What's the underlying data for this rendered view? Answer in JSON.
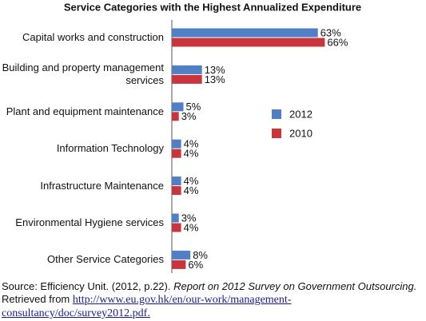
{
  "chart_data": {
    "type": "bar",
    "orientation": "horizontal",
    "title": "Service Categories with the Highest Annualized Expenditure",
    "categories": [
      "Capital works and construction",
      "Building and property management services",
      "Plant and equipment maintenance",
      "Information Technology",
      "Infrastructure Maintenance",
      "Environmental Hygiene services",
      "Other Service Categories"
    ],
    "series": [
      {
        "name": "2012",
        "color": "#4f7fc4",
        "values": [
          63,
          13,
          5,
          4,
          4,
          3,
          8
        ],
        "value_labels": [
          "63%",
          "13%",
          "5%",
          "4%",
          "4%",
          "3%",
          "8%"
        ]
      },
      {
        "name": "2010",
        "color": "#c9353d",
        "values": [
          66,
          13,
          3,
          4,
          4,
          4,
          6
        ],
        "value_labels": [
          "66%",
          "13%",
          "3%",
          "4%",
          "4%",
          "4%",
          "6%"
        ]
      }
    ],
    "xlim": [
      0,
      70
    ],
    "legend": "right"
  },
  "source": {
    "prefix": "Source: Efficiency Unit. (2012, p.22).",
    "report": "Report on 2012 Survey on Government Outsourcing.",
    "retrieved": "Retrieved from",
    "url": "http://www.eu.gov.hk/en/our-work/management-consultancy/doc/survey2012.pdf."
  }
}
